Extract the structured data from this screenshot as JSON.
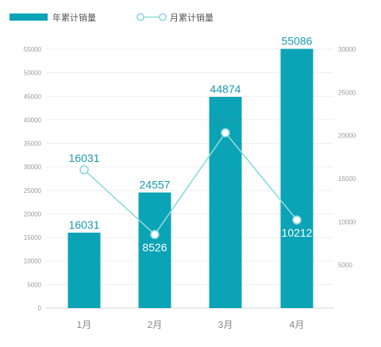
{
  "colors": {
    "bar": "#0ba3b6",
    "line": "#8fd9dc",
    "label": "#1a9bb0",
    "tick": "#9a9a9a",
    "category": "#888888",
    "grid": "#efefef",
    "baseline": "#d6d6d6"
  },
  "legend": {
    "bar_series_label": "年累计销量",
    "line_series_label": "月累计销量"
  },
  "chart_data": {
    "type": "bar",
    "categories": [
      "1月",
      "2月",
      "3月",
      "4月"
    ],
    "series": [
      {
        "name": "年累计销量",
        "type": "bar",
        "axis": "left",
        "values": [
          16031,
          24557,
          44874,
          55086
        ]
      },
      {
        "name": "月累计销量",
        "type": "line",
        "axis": "right",
        "values": [
          16031,
          8526,
          20317,
          10212
        ]
      }
    ],
    "left_axis": {
      "ylim": [
        0,
        55000
      ],
      "ticks": [
        "0",
        "5000",
        "10000",
        "15000",
        "20000",
        "25000",
        "30000",
        "35000",
        "40000",
        "45000",
        "50000",
        "55000"
      ]
    },
    "right_axis": {
      "ylim": [
        0,
        30000
      ],
      "ticks": [
        "5000",
        "10000",
        "15000",
        "20000",
        "25000",
        "30000"
      ]
    },
    "grid": true,
    "legend_position": "top-left"
  }
}
